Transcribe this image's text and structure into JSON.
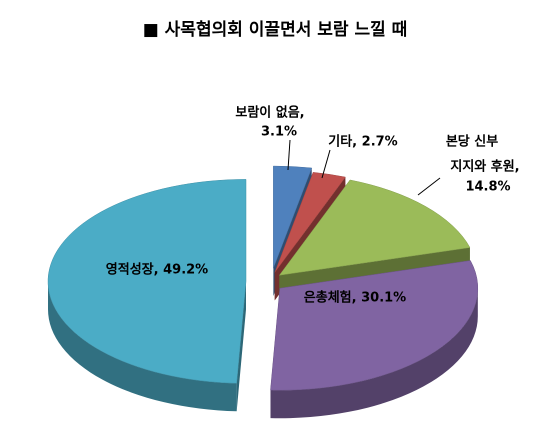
{
  "chart_data": {
    "type": "pie",
    "title": "■ 사목협의회 이끌면서 보람 느낄  때",
    "values": [
      3.1,
      2.7,
      14.8,
      30.1,
      49.2
    ],
    "value_labels": [
      [
        "보람이 없음,",
        "3.1%"
      ],
      [
        "기타, 2.7%"
      ],
      [
        "본당 신부",
        "지지와 후원,",
        "14.8%"
      ],
      [
        "은총체험, 30.1%"
      ],
      [
        "영적성장, 49.2%"
      ]
    ],
    "colors": [
      "#4f81bd",
      "#c0504d",
      "#9bbb59",
      "#8064a2",
      "#4bacc6"
    ]
  }
}
